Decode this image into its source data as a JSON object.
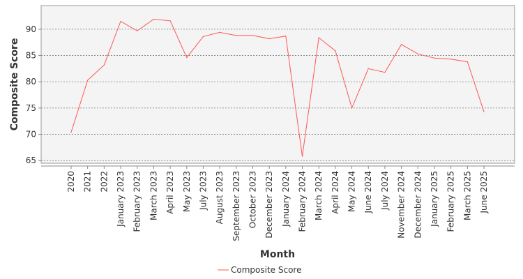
{
  "chart_data": {
    "type": "line",
    "xlabel": "Month",
    "ylabel": "Composite Score",
    "ylim": [
      64.5,
      94.5
    ],
    "yticks": [
      65,
      70,
      75,
      80,
      85,
      90
    ],
    "grid": true,
    "legend_position": "bottom",
    "categories": [
      "2020",
      "2021",
      "2022",
      "January 2023",
      "February 2023",
      "March 2023",
      "April 2023",
      "May 2023",
      "July 2023",
      "August 2023",
      "September 2023",
      "October 2023",
      "December 2023",
      "January 2024",
      "February 2024",
      "March 2024",
      "April 2024",
      "May 2024",
      "June 2024",
      "July 2024",
      "November 2024",
      "December 2024",
      "January 2025",
      "February 2025",
      "March 2025",
      "June 2025"
    ],
    "series": [
      {
        "name": "Composite Score",
        "color": "#ff5555",
        "values": [
          70.4,
          80.3,
          83.2,
          91.5,
          89.7,
          91.9,
          91.6,
          84.6,
          88.6,
          89.4,
          88.8,
          88.8,
          88.2,
          88.7,
          65.8,
          88.4,
          85.9,
          75.0,
          82.5,
          81.8,
          87.1,
          85.3,
          84.5,
          84.3,
          83.8,
          74.3
        ]
      }
    ]
  }
}
